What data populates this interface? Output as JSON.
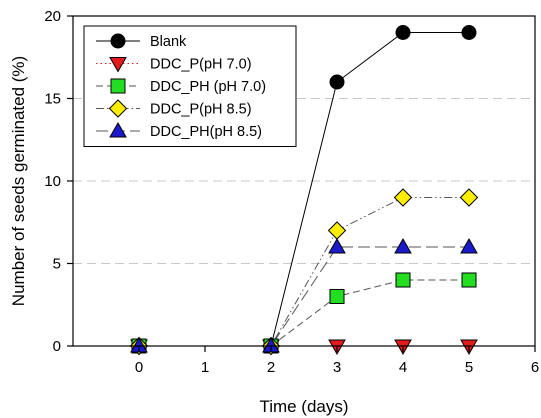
{
  "chart_data": {
    "type": "line",
    "xlabel": "Time (days)",
    "ylabel": "Number of seeds germinated (%)",
    "xlim": [
      -1,
      6
    ],
    "ylim": [
      0,
      20
    ],
    "xticks": [
      0,
      1,
      2,
      3,
      4,
      5,
      6
    ],
    "yticks": [
      0,
      5,
      10,
      15,
      20
    ],
    "grid": {
      "y_dashed_lines": [
        5,
        10,
        15
      ],
      "color": "#c8c8c8"
    },
    "legend": {
      "position": "top-left"
    },
    "x": [
      0,
      2,
      3,
      4,
      5
    ],
    "series": [
      {
        "name": "Blank",
        "marker": "circle",
        "marker_color": "#000000",
        "line_color": "#000000",
        "line_style": "solid",
        "values": [
          0,
          0,
          16,
          19,
          19
        ]
      },
      {
        "name": "DDC_P(pH 7.0)",
        "marker": "triangle-down",
        "marker_color": "#e41a1c",
        "line_color": "#e41a1c",
        "line_style": "dotted",
        "values": [
          0,
          0,
          0,
          0,
          0
        ]
      },
      {
        "name": "DDC_PH (pH 7.0)",
        "marker": "square",
        "marker_color": "#22dd22",
        "line_color": "#555555",
        "line_style": "dashed",
        "values": [
          0,
          0,
          3,
          4,
          4
        ]
      },
      {
        "name": "DDC_P(pH 8.5)",
        "marker": "diamond",
        "marker_color": "#ffee00",
        "line_color": "#555555",
        "line_style": "dashdotdot",
        "values": [
          0,
          0,
          7,
          9,
          9
        ]
      },
      {
        "name": "DDC_PH(pH 8.5)",
        "marker": "triangle-up",
        "marker_color": "#1a1acc",
        "line_color": "#555555",
        "line_style": "longdash",
        "values": [
          0,
          0,
          6,
          6,
          6
        ]
      }
    ]
  }
}
